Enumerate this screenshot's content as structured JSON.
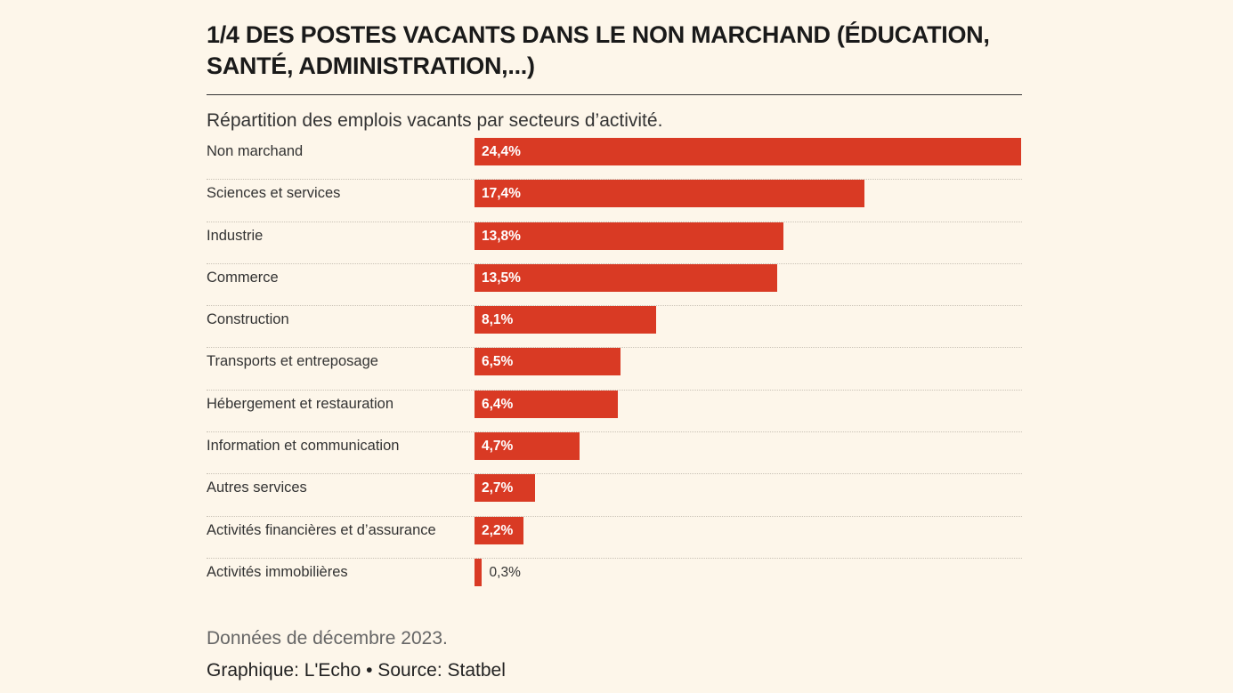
{
  "title": "1/4 DES POSTES VACANTS DANS LE NON MARCHAND (ÉDUCATION,\nSANTÉ, ADMINISTRATION,...)",
  "subtitle": "Répartition des emplois vacants par secteurs d’activité.",
  "note": "Données de décembre 2023.",
  "credit": "Graphique: L'Echo • Source: Statbel",
  "colors": {
    "bar": "#d93a24",
    "background": "#fdf6ea"
  },
  "chart_data": {
    "type": "bar",
    "orientation": "horizontal",
    "title": "1/4 DES POSTES VACANTS DANS LE NON MARCHAND (ÉDUCATION, SANTÉ, ADMINISTRATION,...)",
    "subtitle": "Répartition des emplois vacants par secteurs d’activité.",
    "xlabel": "",
    "ylabel": "",
    "xlim": [
      0,
      24.4
    ],
    "grid": false,
    "legend": "none",
    "categories": [
      "Non marchand",
      "Sciences et services",
      "Industrie",
      "Commerce",
      "Construction",
      "Transports et entreposage",
      "Hébergement et restauration",
      "Information et communication",
      "Autres services",
      "Activités financières et d’assurance",
      "Activités immobilières"
    ],
    "values": [
      24.4,
      17.4,
      13.8,
      13.5,
      8.1,
      6.5,
      6.4,
      4.7,
      2.7,
      2.2,
      0.3
    ],
    "value_labels": [
      "24,4%",
      "17,4%",
      "13,8%",
      "13,5%",
      "8,1%",
      "6,5%",
      "6,4%",
      "4,7%",
      "2,7%",
      "2,2%",
      "0,3%"
    ]
  }
}
